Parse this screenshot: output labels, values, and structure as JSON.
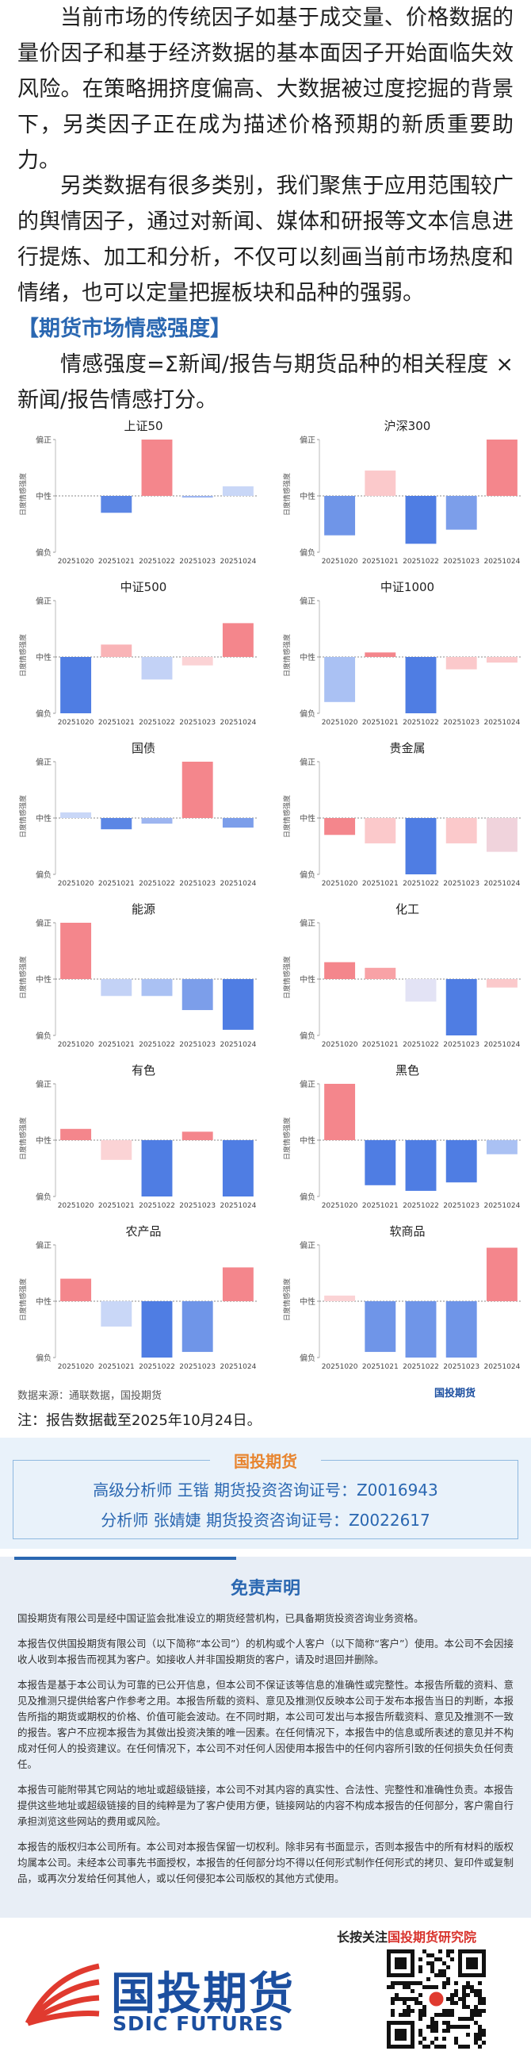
{
  "article": {
    "paragraphs": [
      "当前市场的传统因子如基于成交量、价格数据的量价因子和基于经济数据的基本面因子开始面临失效风险。在策略拥挤度偏高、大数据被过度挖掘的背景下，另类因子正在成为描述价格预期的新质重要助力。",
      "另类数据有很多类别，我们聚焦于应用范围较广的舆情因子，通过对新闻、媒体和研报等文本信息进行提炼、加工和分析，不仅可以刻画当前市场热度和情绪，也可以定量把握板块和品种的强弱。"
    ],
    "section_heading": "【期货市场情感强度】",
    "formula": "情感强度=Σ新闻/报告与期货品种的相关程度 × 新闻/报告情感打分。",
    "source": "数据来源：通联数据，国投期货",
    "note": "注：报告数据截至2025年10月24日。"
  },
  "chart_data": [
    {
      "type": "bar",
      "title": "上证50",
      "y_label": "日度情感强度",
      "categories": [
        "20251020",
        "20251021",
        "20251022",
        "20251023",
        "20251024"
      ],
      "values": [
        0,
        -0.3,
        1.0,
        -0.03,
        0.17
      ],
      "colors": [
        "#f4868c",
        "#5b86e5",
        "#f4868c",
        "#9db5f0",
        "#c9d7f7"
      ],
      "ylim": [
        -1,
        1
      ],
      "yticks": [
        {
          "value": -1,
          "label": "偏负"
        },
        {
          "value": 0,
          "label": "中性"
        },
        {
          "value": 1,
          "label": "偏正"
        }
      ]
    },
    {
      "type": "bar",
      "title": "沪深300",
      "y_label": "日度情感强度",
      "categories": [
        "20251020",
        "20251021",
        "20251022",
        "20251023",
        "20251024"
      ],
      "values": [
        -0.7,
        0.45,
        -0.85,
        -0.6,
        1.0
      ],
      "colors": [
        "#6f95e8",
        "#fbc9cb",
        "#4f7de3",
        "#7c9eea",
        "#f4868c"
      ],
      "ylim": [
        -1,
        1
      ],
      "yticks": [
        {
          "value": -1,
          "label": "偏负"
        },
        {
          "value": 0,
          "label": "中性"
        },
        {
          "value": 1,
          "label": "偏正"
        }
      ]
    },
    {
      "type": "bar",
      "title": "中证500",
      "y_label": "日度情感强度",
      "categories": [
        "20251020",
        "20251021",
        "20251022",
        "20251023",
        "20251024"
      ],
      "values": [
        -1.0,
        0.22,
        -0.4,
        -0.15,
        0.6
      ],
      "colors": [
        "#4f7de3",
        "#f9b4b7",
        "#c3d2f6",
        "#fbd3d5",
        "#f4868c"
      ],
      "ylim": [
        -1,
        1
      ],
      "yticks": [
        {
          "value": -1,
          "label": "偏负"
        },
        {
          "value": 0,
          "label": "中性"
        },
        {
          "value": 1,
          "label": "偏正"
        }
      ]
    },
    {
      "type": "bar",
      "title": "中证1000",
      "y_label": "日度情感强度",
      "categories": [
        "20251020",
        "20251021",
        "20251022",
        "20251023",
        "20251024"
      ],
      "values": [
        -0.8,
        0.08,
        -1.0,
        -0.22,
        -0.1
      ],
      "colors": [
        "#aac1f3",
        "#f4868c",
        "#4f7de3",
        "#fbc9cb",
        "#fbc9cb"
      ],
      "ylim": [
        -1,
        1
      ],
      "yticks": [
        {
          "value": -1,
          "label": "偏负"
        },
        {
          "value": 0,
          "label": "中性"
        },
        {
          "value": 1,
          "label": "偏正"
        }
      ]
    },
    {
      "type": "bar",
      "title": "国债",
      "y_label": "日度情感强度",
      "categories": [
        "20251020",
        "20251021",
        "20251022",
        "20251023",
        "20251024"
      ],
      "values": [
        0.1,
        -0.2,
        -0.1,
        1.0,
        -0.17
      ],
      "colors": [
        "#c9d7f7",
        "#5b86e5",
        "#9db5f0",
        "#f4868c",
        "#7c9eea"
      ],
      "ylim": [
        -1,
        1
      ],
      "yticks": [
        {
          "value": -1,
          "label": "偏负"
        },
        {
          "value": 0,
          "label": "中性"
        },
        {
          "value": 1,
          "label": "偏正"
        }
      ]
    },
    {
      "type": "bar",
      "title": "贵金属",
      "y_label": "日度情感强度",
      "categories": [
        "20251020",
        "20251021",
        "20251022",
        "20251023",
        "20251024"
      ],
      "values": [
        -0.3,
        -0.45,
        -1.0,
        -0.45,
        -0.6
      ],
      "colors": [
        "#f4868c",
        "#fbc9cb",
        "#4f7de3",
        "#fbc9cb",
        "#f0d3dc"
      ],
      "ylim": [
        -1,
        1
      ],
      "yticks": [
        {
          "value": -1,
          "label": "偏负"
        },
        {
          "value": 0,
          "label": "中性"
        },
        {
          "value": 1,
          "label": "偏正"
        }
      ]
    },
    {
      "type": "bar",
      "title": "能源",
      "y_label": "日度情感强度",
      "categories": [
        "20251020",
        "20251021",
        "20251022",
        "20251023",
        "20251024"
      ],
      "values": [
        1.0,
        -0.3,
        -0.3,
        -0.55,
        -0.9
      ],
      "colors": [
        "#f4868c",
        "#c3d2f6",
        "#aac1f3",
        "#7c9eea",
        "#4f7de3"
      ],
      "ylim": [
        -1,
        1
      ],
      "yticks": [
        {
          "value": -1,
          "label": "偏负"
        },
        {
          "value": 0,
          "label": "中性"
        },
        {
          "value": 1,
          "label": "偏正"
        }
      ]
    },
    {
      "type": "bar",
      "title": "化工",
      "y_label": "日度情感强度",
      "categories": [
        "20251020",
        "20251021",
        "20251022",
        "20251023",
        "20251024"
      ],
      "values": [
        0.3,
        0.2,
        -0.4,
        -1.0,
        -0.15
      ],
      "colors": [
        "#f4868c",
        "#f8a2a6",
        "#e3e3f5",
        "#4f7de3",
        "#fbc9cb"
      ],
      "ylim": [
        -1,
        1
      ],
      "yticks": [
        {
          "value": -1,
          "label": "偏负"
        },
        {
          "value": 0,
          "label": "中性"
        },
        {
          "value": 1,
          "label": "偏正"
        }
      ]
    },
    {
      "type": "bar",
      "title": "有色",
      "y_label": "日度情感强度",
      "categories": [
        "20251020",
        "20251021",
        "20251022",
        "20251023",
        "20251024"
      ],
      "values": [
        0.2,
        -0.35,
        -1.0,
        0.15,
        -1.0
      ],
      "colors": [
        "#f4868c",
        "#fbd3d5",
        "#4f7de3",
        "#f4868c",
        "#4f7de3"
      ],
      "ylim": [
        -1,
        1
      ],
      "yticks": [
        {
          "value": -1,
          "label": "偏负"
        },
        {
          "value": 0,
          "label": "中性"
        },
        {
          "value": 1,
          "label": "偏正"
        }
      ]
    },
    {
      "type": "bar",
      "title": "黑色",
      "y_label": "日度情感强度",
      "categories": [
        "20251020",
        "20251021",
        "20251022",
        "20251023",
        "20251024"
      ],
      "values": [
        1.0,
        -0.8,
        -0.9,
        -0.75,
        -0.25
      ],
      "colors": [
        "#f4868c",
        "#4f7de3",
        "#4f7de3",
        "#4f7de3",
        "#aac1f3"
      ],
      "ylim": [
        -1,
        1
      ],
      "yticks": [
        {
          "value": -1,
          "label": "偏负"
        },
        {
          "value": 0,
          "label": "中性"
        },
        {
          "value": 1,
          "label": "偏正"
        }
      ]
    },
    {
      "type": "bar",
      "title": "农产品",
      "y_label": "日度情感强度",
      "categories": [
        "20251020",
        "20251021",
        "20251022",
        "20251023",
        "20251024"
      ],
      "values": [
        0.4,
        -0.45,
        -1.0,
        -0.9,
        0.6
      ],
      "colors": [
        "#f4868c",
        "#c9d7f7",
        "#4f7de3",
        "#6f95e8",
        "#f4868c"
      ],
      "ylim": [
        -1,
        1
      ],
      "yticks": [
        {
          "value": -1,
          "label": "偏负"
        },
        {
          "value": 0,
          "label": "中性"
        },
        {
          "value": 1,
          "label": "偏正"
        }
      ]
    },
    {
      "type": "bar",
      "title": "软商品",
      "y_label": "日度情感强度",
      "categories": [
        "20251020",
        "20251021",
        "20251022",
        "20251023",
        "20251024"
      ],
      "values": [
        0.1,
        -0.9,
        -1.0,
        -1.0,
        0.95
      ],
      "colors": [
        "#fbd3d5",
        "#6f95e8",
        "#6f95e8",
        "#6f95e8",
        "#f4868c"
      ],
      "ylim": [
        -1,
        1
      ],
      "yticks": [
        {
          "value": -1,
          "label": "偏负"
        },
        {
          "value": 0,
          "label": "中性"
        },
        {
          "value": 1,
          "label": "偏正"
        }
      ]
    }
  ],
  "analysts": {
    "tag": "国投期货",
    "lines": [
      "高级分析师 王锴 期货投资咨询证号：Z0016943",
      "分析师 张婧婕 期货投资咨询证号：Z0022617"
    ]
  },
  "disclaimer": {
    "title": "免责声明",
    "paragraphs": [
      "国投期货有限公司是经中国证监会批准设立的期货经营机构，已具备期货投资咨询业务资格。",
      "本报告仅供国投期货有限公司（以下简称“本公司”）的机构或个人客户（以下简称“客户”）使用。本公司不会因接收人收到本报告而视其为客户。如接收人并非国投期货的客户，请及时退回并删除。",
      "本报告是基于本公司认为可靠的已公开信息，但本公司不保证该等信息的准确性或完整性。本报告所载的资料、意见及推测只提供给客户作参考之用。本报告所载的资料、意见及推测仅反映本公司于发布本报告当日的判断，本报告所指的期货或期权的价格、价值可能会波动。在不同时期，本公司可发出与本报告所载资料、意见及推测不一致的报告。客户不应视本报告为其做出投资决策的唯一因素。在任何情况下，本报告中的信息或所表述的意见并不构成对任何人的投资建议。在任何情况下，本公司不对任何人因使用本报告中的任何内容所引致的任何损失负任何责任。",
      "本报告可能附带其它网站的地址或超级链接，本公司不对其内容的真实性、合法性、完整性和准确性负责。本报告提供这些地址或超级链接的目的纯粹是为了客户使用方便，链接网站的内容不构成本报告的任何部分，客户需自行承担浏览这些网站的费用或风险。",
      "本报告的版权归本公司所有。本公司对本报告保留一切权利。除非另有书面显示，否则本报告中的所有材料的版权均属本公司。未经本公司事先书面授权，本报告的任何部分均不得以任何形式制作任何形式的拷贝、复印件或复制品，或再次分发给任何其他人，或以任何侵犯本公司版权的其他方式使用。"
    ]
  },
  "footer": {
    "follow_prefix": "长按关注",
    "follow_name": "国投期货研究院",
    "logo_cn": "国投期货",
    "logo_en": "SDIC FUTURES"
  }
}
